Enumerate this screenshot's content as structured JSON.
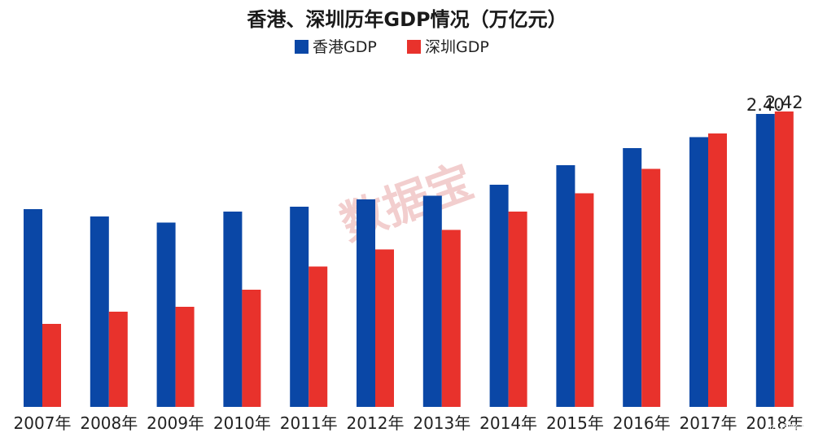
{
  "chart_data": {
    "type": "bar",
    "title": "香港、深圳历年GDP情况（万亿元）",
    "categories": [
      "2007年",
      "2008年",
      "2009年",
      "2010年",
      "2011年",
      "2012年",
      "2013年",
      "2014年",
      "2015年",
      "2016年",
      "2017年",
      "2018年"
    ],
    "series": [
      {
        "name": "香港GDP",
        "color": "#0a47a6",
        "values": [
          1.62,
          1.56,
          1.51,
          1.6,
          1.64,
          1.7,
          1.73,
          1.82,
          1.98,
          2.12,
          2.21,
          2.4
        ]
      },
      {
        "name": "深圳GDP",
        "color": "#e8322c",
        "values": [
          0.68,
          0.78,
          0.82,
          0.96,
          1.15,
          1.29,
          1.45,
          1.6,
          1.75,
          1.95,
          2.24,
          2.42
        ]
      }
    ],
    "data_labels": [
      {
        "category": "2018年",
        "series": "香港GDP",
        "text": "2.40"
      },
      {
        "category": "2018年",
        "series": "深圳GDP",
        "text": "2.42"
      }
    ],
    "ylim": [
      0,
      2.6
    ],
    "grid": false,
    "legend": "top-center"
  },
  "watermark": "数据宝",
  "credit": "@格隆汇"
}
